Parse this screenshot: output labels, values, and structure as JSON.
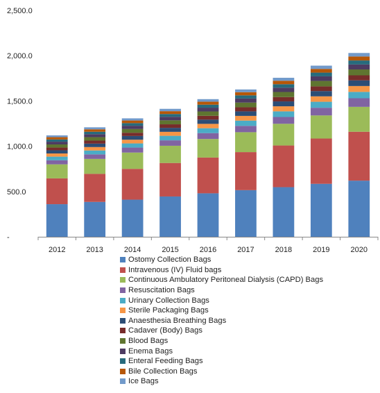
{
  "chart_data": {
    "type": "bar",
    "stacked": true,
    "categories": [
      "2012",
      "2013",
      "2014",
      "2015",
      "2016",
      "2017",
      "2018",
      "2019",
      "2020"
    ],
    "ylim": [
      0,
      2500
    ],
    "yticks": [
      {
        "value": 0,
        "label": "-"
      },
      {
        "value": 500,
        "label": "500.0"
      },
      {
        "value": 1000,
        "label": "1,000.0"
      },
      {
        "value": 1500,
        "label": "1,500.0"
      },
      {
        "value": 2000,
        "label": "2,000.0"
      },
      {
        "value": 2500,
        "label": "2,500.0"
      }
    ],
    "grid": false,
    "legend_position": "bottom",
    "series": [
      {
        "name": "Ostomy Collection Bags",
        "color": "#4f81bd",
        "values": [
          360,
          385,
          410,
          445,
          480,
          515,
          548,
          585,
          620
        ]
      },
      {
        "name": "Intravenous (IV) Fluid bags",
        "color": "#c0504d",
        "values": [
          285,
          310,
          340,
          370,
          395,
          420,
          460,
          500,
          540
        ]
      },
      {
        "name": "Continuous Ambulatory Peritoneal Dialysis (CAPD) Bags",
        "color": "#9bbb59",
        "values": [
          155,
          165,
          180,
          190,
          205,
          220,
          240,
          255,
          275
        ]
      },
      {
        "name": "Resuscitation Bags",
        "color": "#8064a2",
        "values": [
          45,
          50,
          55,
          60,
          65,
          70,
          75,
          85,
          95
        ]
      },
      {
        "name": "Urinary Collection Bags",
        "color": "#4bacc6",
        "values": [
          40,
          43,
          46,
          50,
          54,
          58,
          62,
          66,
          70
        ]
      },
      {
        "name": "Sterile Packaging Bags",
        "color": "#f79646",
        "values": [
          35,
          38,
          41,
          44,
          48,
          52,
          56,
          60,
          65
        ]
      },
      {
        "name": "Anaesthesia Breathing Bags",
        "color": "#2c4d75",
        "values": [
          35,
          38,
          41,
          44,
          47,
          50,
          54,
          58,
          62
        ]
      },
      {
        "name": "Cadaver (Body) Bags",
        "color": "#772c2a",
        "values": [
          30,
          33,
          36,
          39,
          42,
          45,
          48,
          52,
          56
        ]
      },
      {
        "name": "Blood Bags",
        "color": "#5f7530",
        "values": [
          35,
          38,
          41,
          44,
          48,
          52,
          56,
          60,
          65
        ]
      },
      {
        "name": "Enema Bags",
        "color": "#4d3b62",
        "values": [
          30,
          33,
          36,
          39,
          42,
          45,
          48,
          51,
          55
        ]
      },
      {
        "name": "Enteral Feeding Bags",
        "color": "#276a7c",
        "values": [
          25,
          27,
          29,
          31,
          33,
          35,
          38,
          41,
          44
        ]
      },
      {
        "name": "Bile Collection Bags",
        "color": "#b65708",
        "values": [
          25,
          27,
          29,
          31,
          33,
          35,
          38,
          41,
          44
        ]
      },
      {
        "name": "Ice Bags",
        "color": "#729aca",
        "values": [
          20,
          22,
          24,
          26,
          28,
          30,
          33,
          36,
          39
        ]
      }
    ]
  }
}
